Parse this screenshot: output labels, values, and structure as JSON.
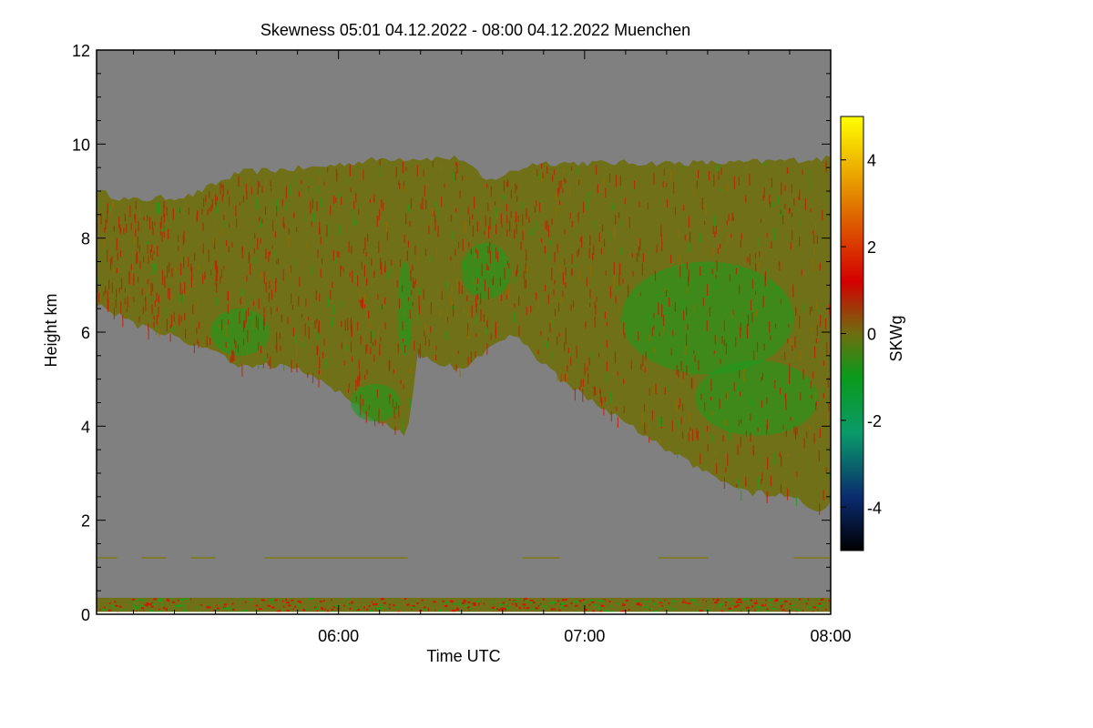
{
  "chart_data": {
    "type": "heatmap",
    "title": "Skewness   05:01 04.12.2022 - 08:00 04.12.2022 Muenchen",
    "xlabel": "Time UTC",
    "ylabel": "Height km",
    "colorbar_label": "SKWg",
    "x_range_hours": [
      5.0167,
      8.0
    ],
    "y_range_km": [
      0,
      12
    ],
    "x_ticks": [
      {
        "value": 6.0,
        "label": "06:00"
      },
      {
        "value": 7.0,
        "label": "07:00"
      },
      {
        "value": 8.0,
        "label": "08:00"
      }
    ],
    "y_ticks": [
      {
        "value": 0,
        "label": "0"
      },
      {
        "value": 2,
        "label": "2"
      },
      {
        "value": 4,
        "label": "4"
      },
      {
        "value": 6,
        "label": "6"
      },
      {
        "value": 8,
        "label": "8"
      },
      {
        "value": 10,
        "label": "10"
      },
      {
        "value": 12,
        "label": "12"
      }
    ],
    "colorbar_range": [
      -5,
      5
    ],
    "colorbar_ticks": [
      {
        "value": 4,
        "label": "4"
      },
      {
        "value": 2,
        "label": "2"
      },
      {
        "value": 0,
        "label": "0"
      },
      {
        "value": -2,
        "label": "-2"
      },
      {
        "value": -4,
        "label": "-4"
      }
    ],
    "colorbar_stops": [
      {
        "value": -5,
        "color": "#000000"
      },
      {
        "value": -3.8,
        "color": "#0a2a6e"
      },
      {
        "value": -2.3,
        "color": "#0a9a6a"
      },
      {
        "value": -1.0,
        "color": "#0a9a1a"
      },
      {
        "value": 0,
        "color": "#6e6e10"
      },
      {
        "value": 1.2,
        "color": "#d40000"
      },
      {
        "value": 3.0,
        "color": "#e07a00"
      },
      {
        "value": 5,
        "color": "#ffff00"
      }
    ],
    "background_color": "#808080",
    "cloud_color": "#707018",
    "cloud_top_km": [
      {
        "t": 5.02,
        "h": 9.0
      },
      {
        "t": 5.15,
        "h": 8.8
      },
      {
        "t": 5.4,
        "h": 8.9
      },
      {
        "t": 5.6,
        "h": 9.4
      },
      {
        "t": 5.9,
        "h": 9.5
      },
      {
        "t": 6.2,
        "h": 9.7
      },
      {
        "t": 6.5,
        "h": 9.7
      },
      {
        "t": 6.6,
        "h": 9.2
      },
      {
        "t": 6.8,
        "h": 9.6
      },
      {
        "t": 7.2,
        "h": 9.6
      },
      {
        "t": 7.6,
        "h": 9.6
      },
      {
        "t": 8.0,
        "h": 9.7
      }
    ],
    "cloud_base_km": [
      {
        "t": 5.02,
        "h": 6.6
      },
      {
        "t": 5.2,
        "h": 6.1
      },
      {
        "t": 5.45,
        "h": 5.7
      },
      {
        "t": 5.6,
        "h": 5.3
      },
      {
        "t": 5.8,
        "h": 5.3
      },
      {
        "t": 5.95,
        "h": 4.9
      },
      {
        "t": 6.05,
        "h": 4.6
      },
      {
        "t": 6.15,
        "h": 4.1
      },
      {
        "t": 6.28,
        "h": 3.8
      },
      {
        "t": 6.32,
        "h": 5.5
      },
      {
        "t": 6.5,
        "h": 5.2
      },
      {
        "t": 6.7,
        "h": 6.0
      },
      {
        "t": 6.9,
        "h": 5.0
      },
      {
        "t": 7.1,
        "h": 4.3
      },
      {
        "t": 7.3,
        "h": 3.6
      },
      {
        "t": 7.5,
        "h": 3.0
      },
      {
        "t": 7.65,
        "h": 2.6
      },
      {
        "t": 7.85,
        "h": 2.5
      },
      {
        "t": 7.95,
        "h": 2.2
      },
      {
        "t": 8.0,
        "h": 2.4
      }
    ],
    "low_level_band_km": [
      0.05,
      0.35
    ],
    "thin_layer_km": 1.2,
    "green_regions": [
      {
        "t": 6.27,
        "h": 6.5,
        "rt": 0.03,
        "rh": 1.0
      },
      {
        "t": 7.5,
        "h": 6.3,
        "rt": 0.35,
        "rh": 1.2
      },
      {
        "t": 7.7,
        "h": 4.6,
        "rt": 0.25,
        "rh": 0.8
      },
      {
        "t": 5.6,
        "h": 6.0,
        "rt": 0.12,
        "rh": 0.5
      },
      {
        "t": 6.15,
        "h": 4.5,
        "rt": 0.1,
        "rh": 0.4
      },
      {
        "t": 6.6,
        "h": 7.3,
        "rt": 0.1,
        "rh": 0.6
      }
    ]
  }
}
